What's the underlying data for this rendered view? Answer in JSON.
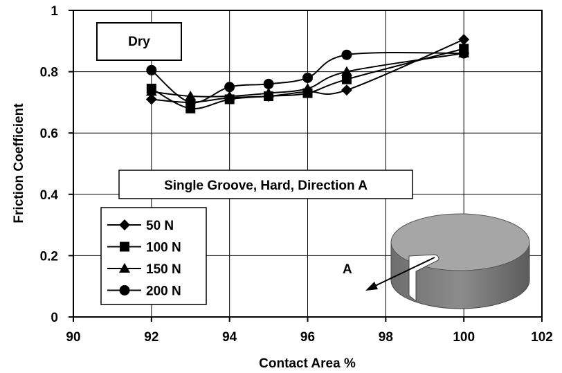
{
  "chart_data": {
    "type": "line",
    "title": "",
    "xlabel": "Contact Area %",
    "ylabel": "Friction Coefficient",
    "xlim": [
      90,
      102
    ],
    "ylim": [
      0,
      1
    ],
    "x_ticks": [
      90,
      92,
      94,
      96,
      98,
      100,
      102
    ],
    "y_ticks": [
      0,
      0.2,
      0.4,
      0.6,
      0.8,
      1
    ],
    "y_tick_labels": [
      "0",
      "0.2",
      "0.4",
      "0.6",
      "0.8",
      "1"
    ],
    "grid": true,
    "x": [
      92,
      93,
      94,
      95,
      96,
      97,
      100
    ],
    "series": [
      {
        "name": "50 N",
        "marker": "diamond",
        "values": [
          0.71,
          0.7,
          0.715,
          0.72,
          0.735,
          0.74,
          0.905
        ]
      },
      {
        "name": "100 N",
        "marker": "square",
        "values": [
          0.745,
          0.68,
          0.71,
          0.72,
          0.73,
          0.775,
          0.875
        ]
      },
      {
        "name": "150 N",
        "marker": "triangle",
        "values": [
          0.735,
          0.72,
          0.72,
          0.73,
          0.745,
          0.8,
          0.86
        ]
      },
      {
        "name": "200 N",
        "marker": "circle",
        "values": [
          0.805,
          0.7,
          0.75,
          0.76,
          0.78,
          0.855,
          0.86
        ]
      }
    ],
    "legend_position": "bottom-left",
    "annotations": {
      "condition": "Dry",
      "description": "Single Groove, Hard, Direction A",
      "arrow_label": "A"
    },
    "colors": {
      "line": "#000000",
      "disk": "#808080"
    }
  }
}
